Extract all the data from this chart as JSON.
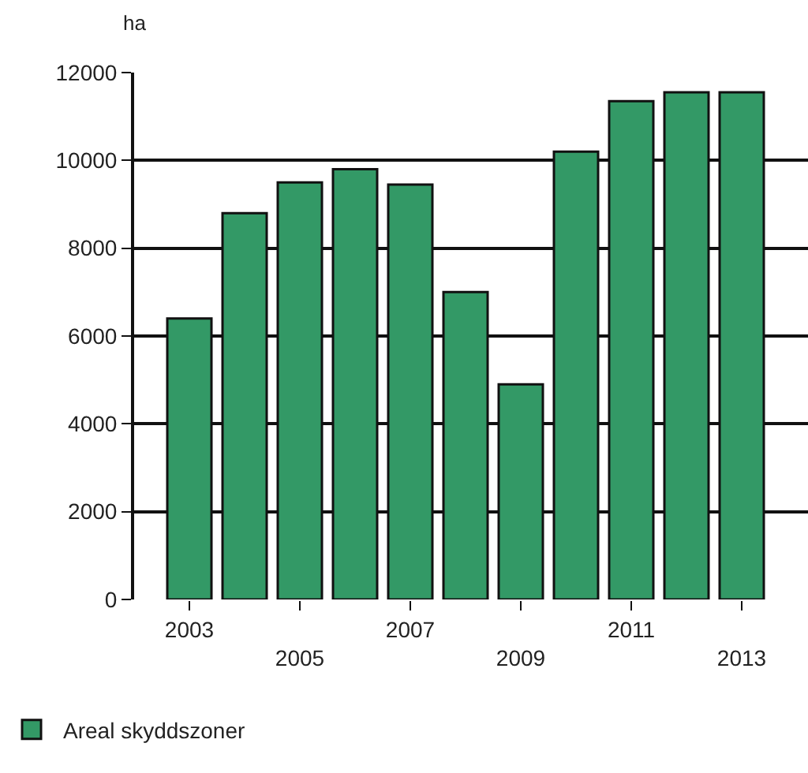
{
  "chart_data": {
    "type": "bar",
    "ylabel": "ha",
    "categories": [
      "2003",
      null,
      "2005",
      null,
      "2007",
      null,
      "2009",
      null,
      "2011",
      null,
      "2013"
    ],
    "series": [
      {
        "name": "Areal skyddszoner",
        "color": "#339966",
        "values": [
          6400,
          8800,
          9500,
          9800,
          9450,
          7000,
          4900,
          10200,
          11350,
          11550,
          11550
        ]
      }
    ],
    "ylim": [
      0,
      12000
    ],
    "yticks": [
      0,
      2000,
      4000,
      6000,
      8000,
      10000,
      12000
    ],
    "grid": "y",
    "legend": "bottom left"
  }
}
